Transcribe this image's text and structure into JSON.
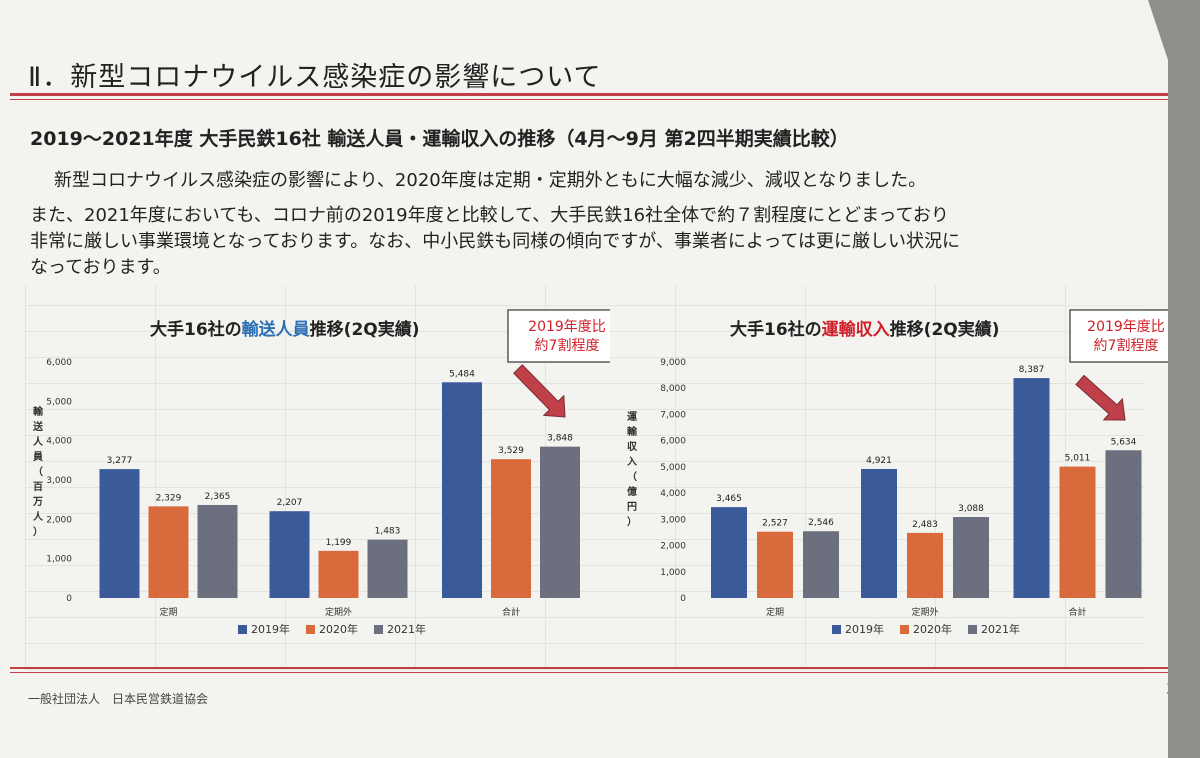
{
  "page": {
    "section_title": "Ⅱ．新型コロナウイルス感染症の影響について",
    "headline": "2019～2021年度 大手民鉄16社 輸送人員・運輸収入の推移（4月～9月 第2四半期実績比較）",
    "paragraph_lines": [
      "新型コロナウイルス感染症の影響により、2020年度は定期・定期外ともに大幅な減少、減収となりました。",
      "また、2021年度においても、コロナ前の2019年度と比較して、大手民鉄16社全体で約７割程度にとどまっており",
      "非常に厳しい事業環境となっております。なお、中小民鉄も同様の傾向ですが、事業者によっては更に厳しい状況に",
      "なっております。"
    ],
    "footer": "一般社団法人　日本民営鉄道協会",
    "page_number": "3"
  },
  "colors": {
    "2019": "#3b5a9a",
    "2020": "#d86a3c",
    "2021": "#6b6f7e",
    "accent_blue": "#2b6fb5",
    "accent_red": "#d0202a",
    "arrow": "#c0404a"
  },
  "chart_data": [
    {
      "type": "bar",
      "title": {
        "pre": "大手16社の",
        "highlight": "輸送人員",
        "post": "推移(2Q実績)"
      },
      "ylabel": "輸送人員（百万人）",
      "ylim": [
        0,
        6000
      ],
      "yticks": [
        "0",
        "1,000",
        "2,000",
        "3,000",
        "4,000",
        "5,000",
        "6,000"
      ],
      "categories": [
        "定期",
        "定期外",
        "合計"
      ],
      "series": [
        {
          "name": "2019年",
          "values": [
            3277,
            2207,
            5484
          ],
          "labels": [
            "3,277",
            "2,207",
            "5,484"
          ]
        },
        {
          "name": "2020年",
          "values": [
            2329,
            1199,
            3529
          ],
          "labels": [
            "2,329",
            "1,199",
            "3,529"
          ]
        },
        {
          "name": "2021年",
          "values": [
            2365,
            1483,
            3848
          ],
          "labels": [
            "2,365",
            "1,483",
            "3,848"
          ]
        }
      ],
      "annotation": [
        "2019年度比",
        "約7割程度"
      ],
      "legend": "bottom"
    },
    {
      "type": "bar",
      "title": {
        "pre": "大手16社の",
        "highlight": "運輸収入",
        "post": "推移(2Q実績)"
      },
      "ylabel": "運輸収入（億円）",
      "ylim": [
        0,
        9000
      ],
      "yticks": [
        "0",
        "1,000",
        "2,000",
        "3,000",
        "4,000",
        "5,000",
        "6,000",
        "7,000",
        "8,000",
        "9,000"
      ],
      "categories": [
        "定期",
        "定期外",
        "合計"
      ],
      "series": [
        {
          "name": "2019年",
          "values": [
            3465,
            4921,
            8387
          ],
          "labels": [
            "3,465",
            "4,921",
            "8,387"
          ]
        },
        {
          "name": "2020年",
          "values": [
            2527,
            2483,
            5011
          ],
          "labels": [
            "2,527",
            "2,483",
            "5,011"
          ]
        },
        {
          "name": "2021年",
          "values": [
            2546,
            3088,
            5634
          ],
          "labels": [
            "2,546",
            "3,088",
            "5,634"
          ]
        }
      ],
      "annotation": [
        "2019年度比",
        "約7割程度"
      ],
      "legend": "bottom"
    }
  ]
}
